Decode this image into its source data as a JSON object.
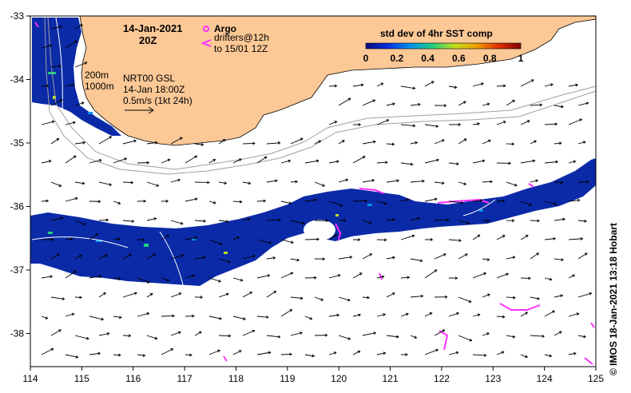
{
  "title": {
    "date": "14-Jan-2021",
    "time": "20Z"
  },
  "legend": {
    "argo_label": "Argo",
    "drifters_line1": "drifters@12h",
    "drifters_line2": "to 15/01 12Z",
    "contour_200": "200m",
    "contour_1000": "1000m",
    "product": "NRT00 GSL",
    "product_time": "14-Jan 18:00Z",
    "vector_scale": "0.5m/s (1kt 24h)"
  },
  "colorbar": {
    "title": "std dev of 4hr SST comp",
    "ticks": [
      "0",
      "0.2",
      "0.4",
      "0.6",
      "0.8",
      "1"
    ],
    "colors": [
      "#0a0a80",
      "#0030e0",
      "#0090f0",
      "#20d080",
      "#c0e020",
      "#f0a000",
      "#e03000",
      "#800000"
    ]
  },
  "axes": {
    "x_ticks": [
      "114",
      "115",
      "116",
      "117",
      "118",
      "119",
      "120",
      "121",
      "122",
      "123",
      "124",
      "125"
    ],
    "y_ticks": [
      "-33",
      "-34",
      "-35",
      "-36",
      "-37",
      "-38"
    ]
  },
  "credit": "© IMOS 18-Jan-2021 13:18 Hobart",
  "colors": {
    "land": "#fbc896",
    "ocean_data": "#0a2aa8",
    "drifter": "#ff30ff",
    "contour": "#a0a0a0"
  }
}
